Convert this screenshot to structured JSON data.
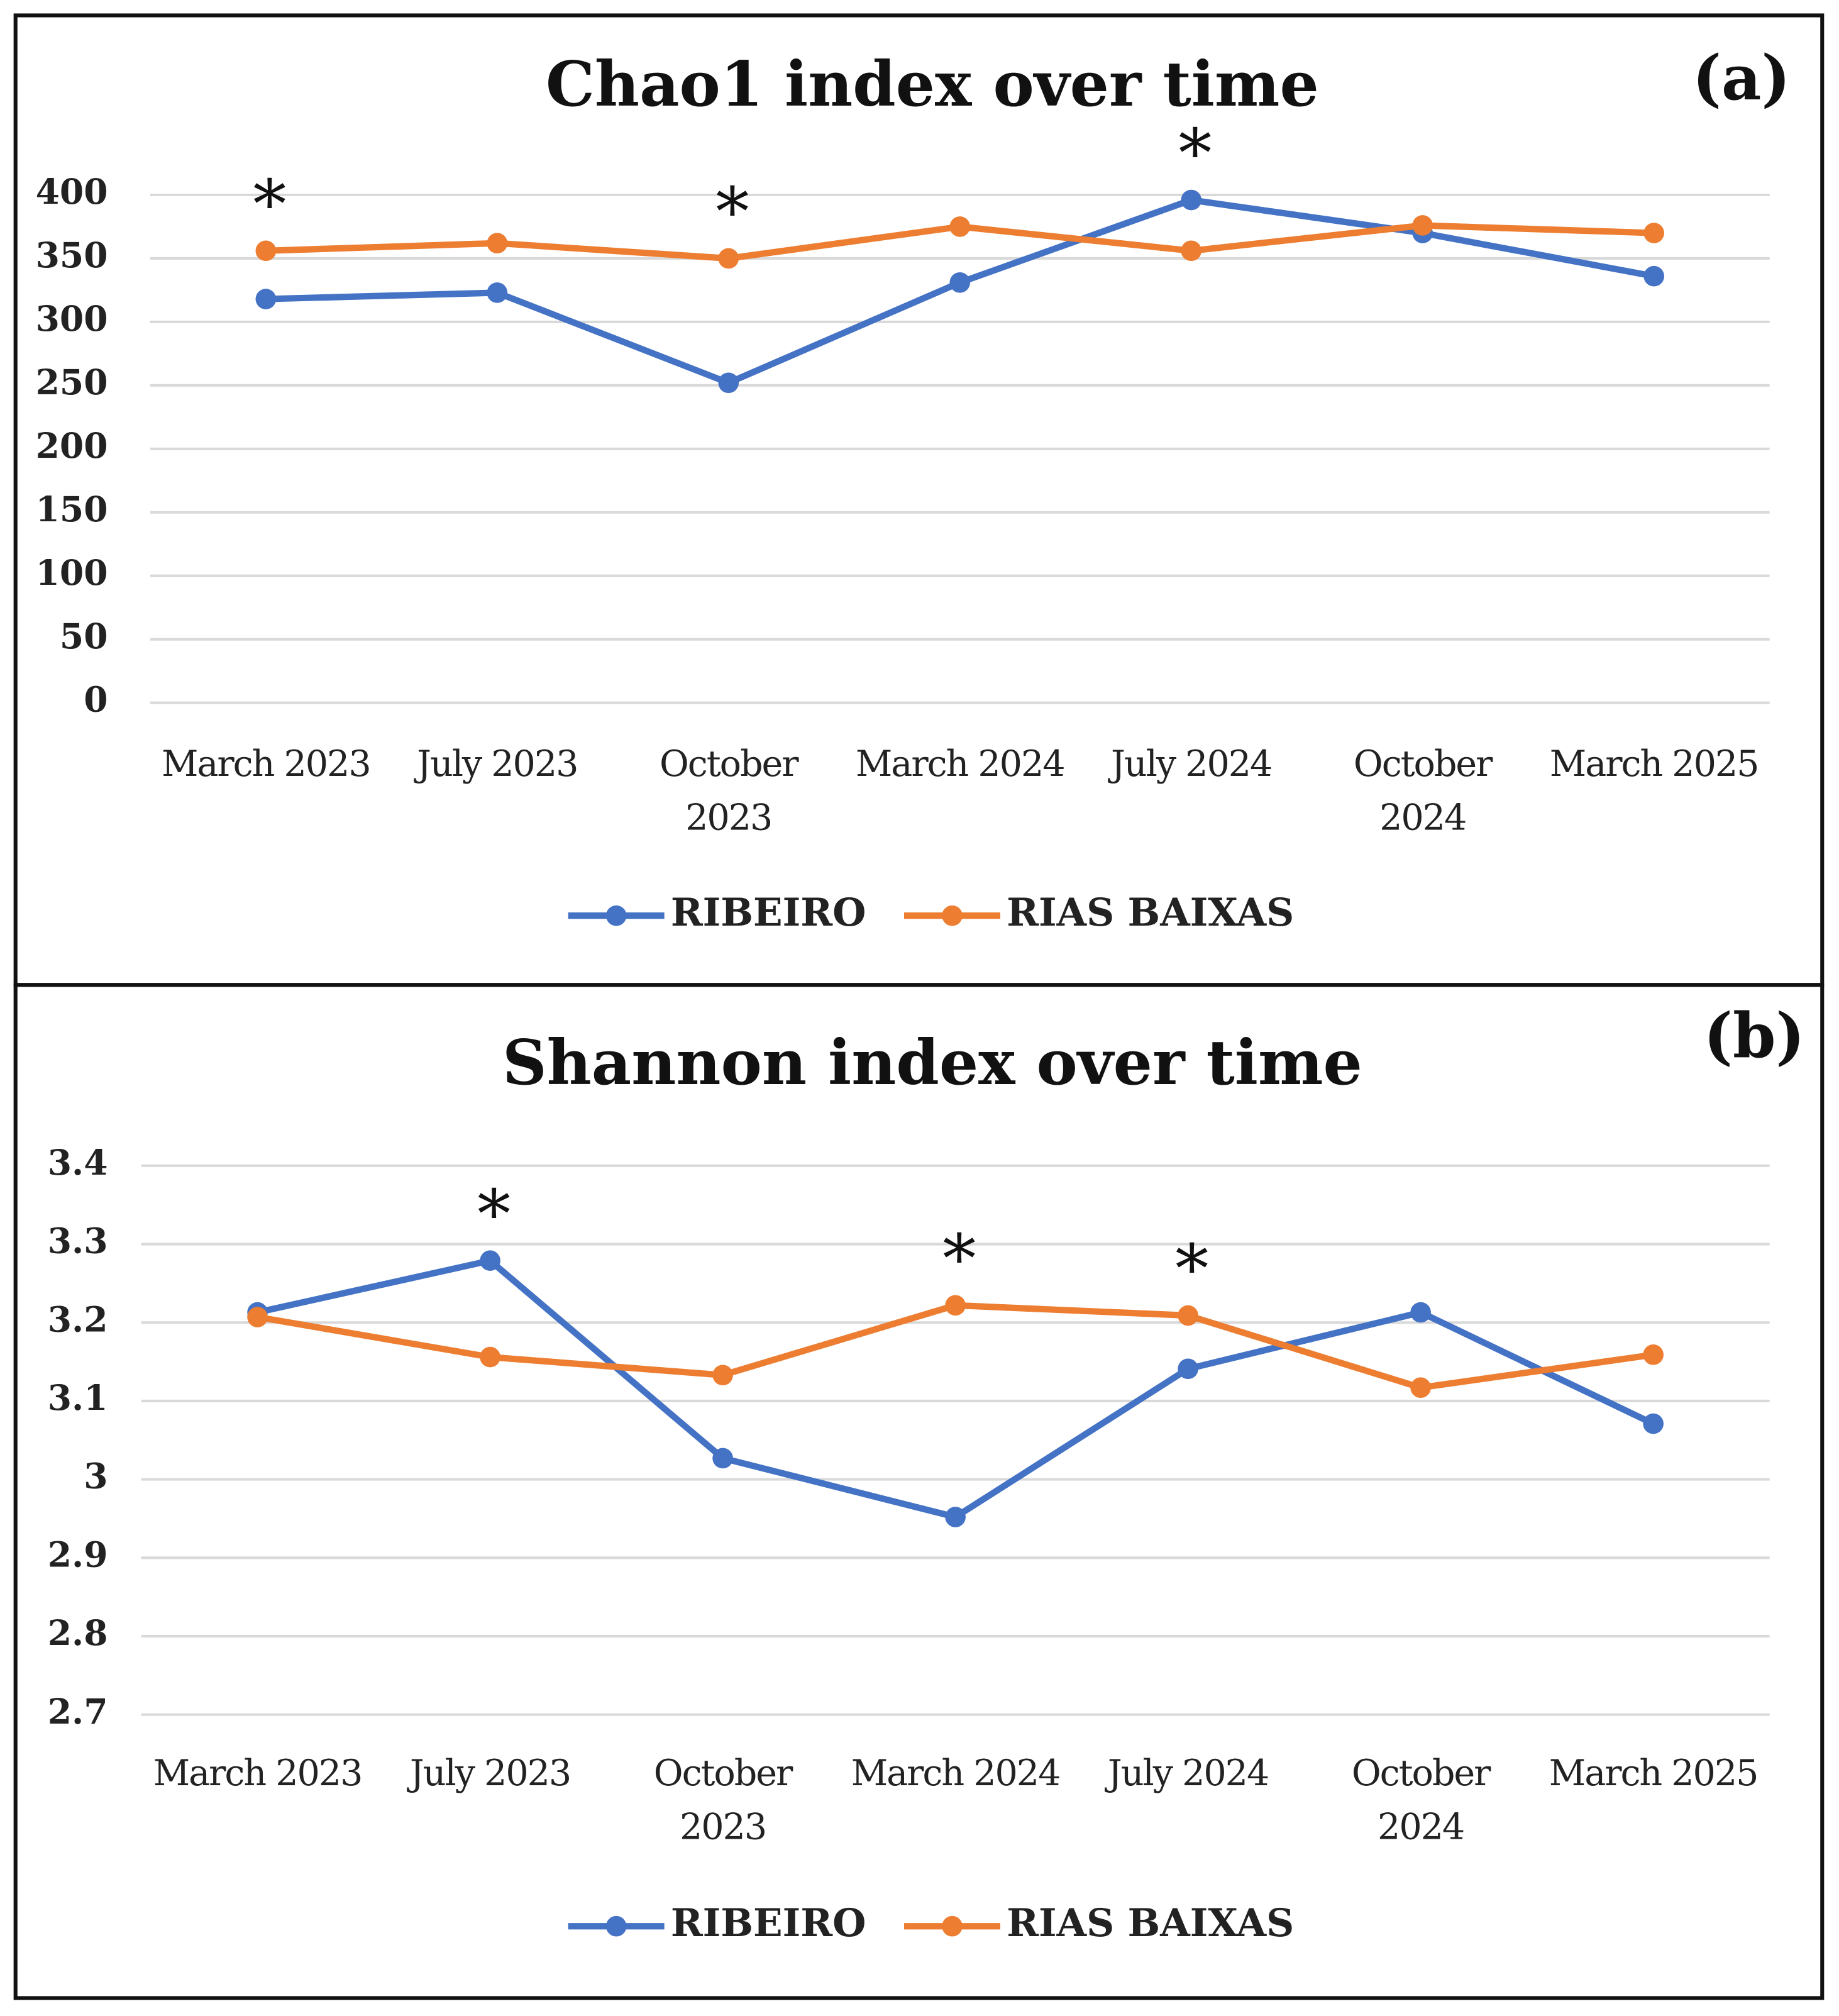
{
  "chart_data": [
    {
      "type": "line",
      "title": "Chao1 index over time",
      "panel_label": "(a)",
      "categories": [
        "March 2023",
        "July 2023",
        "October 2023",
        "March 2024",
        "July 2024",
        "October 2024",
        "March 2025"
      ],
      "series": [
        {
          "name": "RIBEIRO",
          "color": "#4472c4",
          "values": [
            318,
            323,
            252,
            331,
            396,
            370,
            336
          ]
        },
        {
          "name": "RIAS BAIXAS",
          "color": "#ed7d31",
          "values": [
            356,
            362,
            350,
            375,
            356,
            376,
            370
          ]
        }
      ],
      "ylim": [
        0,
        400
      ],
      "yticks": [
        0,
        50,
        100,
        150,
        200,
        250,
        300,
        350,
        400
      ],
      "grid": true,
      "legend": "bottom",
      "annotations": [
        {
          "text": "*",
          "x": "March 2023"
        },
        {
          "text": "*",
          "x": "October 2023"
        },
        {
          "text": "*",
          "x": "July 2024"
        }
      ]
    },
    {
      "type": "line",
      "title": "Shannon index over time",
      "panel_label": "(b)",
      "categories": [
        "March 2023",
        "July 2023",
        "October 2023",
        "March 2024",
        "July 2024",
        "October 2024",
        "March 2025"
      ],
      "series": [
        {
          "name": "RIBEIRO",
          "color": "#4472c4",
          "values": [
            3.213,
            3.279,
            3.027,
            2.952,
            3.141,
            3.213,
            3.071
          ]
        },
        {
          "name": "RIAS BAIXAS",
          "color": "#ed7d31",
          "values": [
            3.207,
            3.156,
            3.133,
            3.222,
            3.209,
            3.117,
            3.159
          ]
        }
      ],
      "ylim": [
        2.7,
        3.4
      ],
      "yticks": [
        2.7,
        2.8,
        2.9,
        3,
        3.1,
        3.2,
        3.3,
        3.4
      ],
      "grid": true,
      "legend": "bottom",
      "annotations": [
        {
          "text": "*",
          "x": "July 2023"
        },
        {
          "text": "*",
          "x": "March 2024"
        },
        {
          "text": "*",
          "x": "July 2024"
        }
      ]
    }
  ]
}
